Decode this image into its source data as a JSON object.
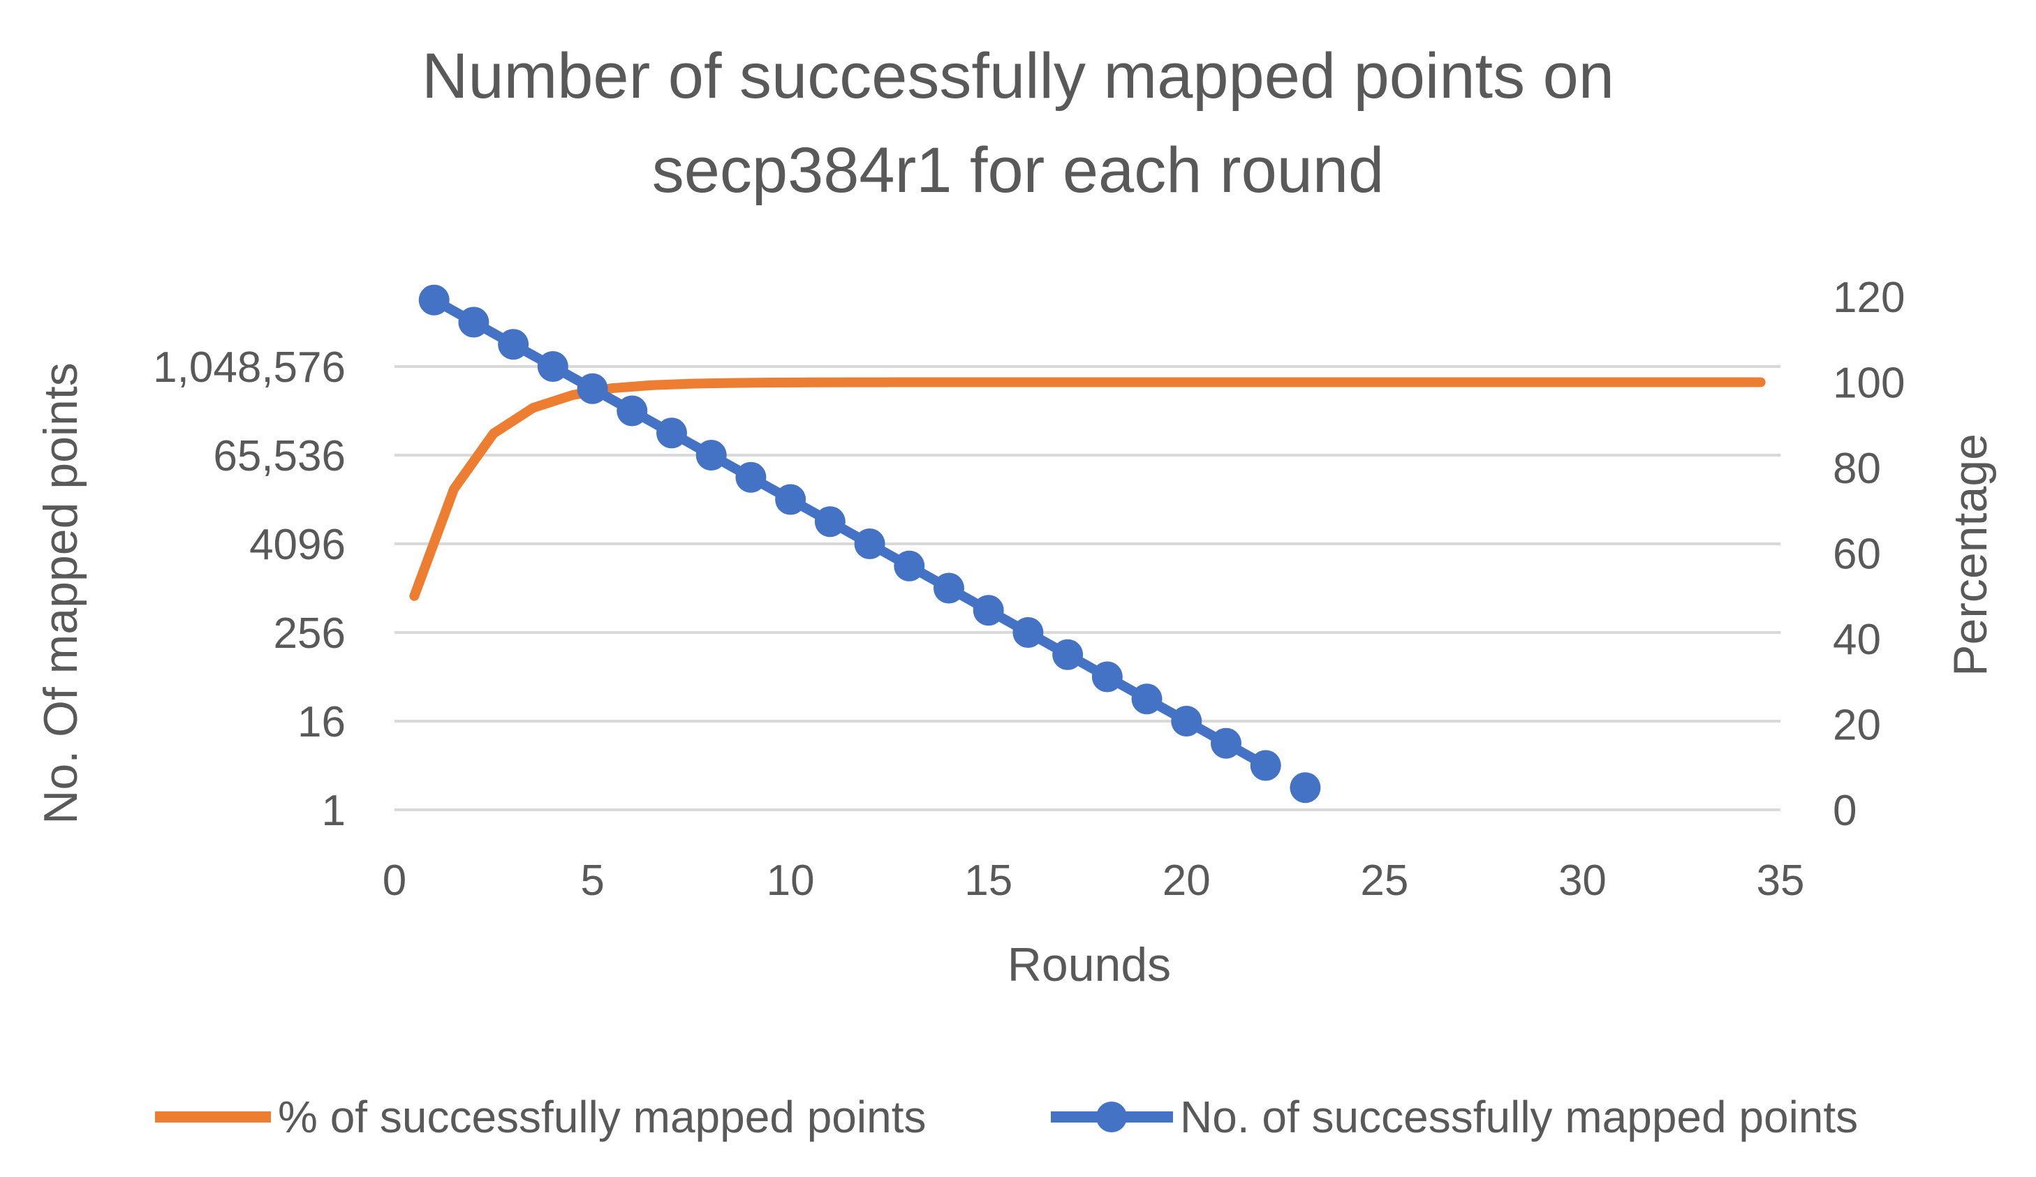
{
  "chart_data": {
    "type": "line",
    "title": [
      "Number of successfully mapped points on",
      "secp384r1 for each round"
    ],
    "xlabel": "Rounds",
    "ylabel_left": "No. Of mapped points",
    "ylabel_right": "Percentage",
    "xlim": [
      0,
      35
    ],
    "x_ticks": [
      "0",
      "5",
      "10",
      "15",
      "20",
      "25",
      "30",
      "35"
    ],
    "left_axis": {
      "scale": "log2",
      "ticks": [
        "1",
        "16",
        "256",
        "4096",
        "65,536",
        "1,048,576"
      ]
    },
    "right_axis": {
      "ylim": [
        0,
        120
      ],
      "ticks": [
        "0",
        "20",
        "40",
        "60",
        "80",
        "100",
        "120"
      ]
    },
    "grid": true,
    "legend_position": "bottom",
    "series": [
      {
        "name": "% of successfully mapped points",
        "axis": "right",
        "color": "#ed7d31",
        "marker": "none",
        "x": [
          0.5,
          1.5,
          2.5,
          3.5,
          4.5,
          5.5,
          6.5,
          7.5,
          8.5,
          9.5,
          10.5,
          11.5,
          12.5,
          13.5,
          14.5,
          34.5
        ],
        "y": [
          50,
          75,
          88,
          94,
          97,
          98.6,
          99.3,
          99.65,
          99.82,
          99.91,
          99.96,
          99.98,
          99.99,
          100,
          100,
          100
        ]
      },
      {
        "name": "No. of successfully mapped points",
        "axis": "left",
        "color": "#4472c4",
        "marker": "circle",
        "x": [
          1,
          2,
          3,
          4,
          5,
          6,
          7,
          8,
          9,
          10,
          11,
          12,
          13,
          14,
          15,
          16,
          17,
          18,
          19,
          20,
          21,
          22,
          23
        ],
        "y": [
          8388608,
          4194304,
          2097152,
          1048576,
          524288,
          262144,
          131072,
          65536,
          32768,
          16384,
          8192,
          4096,
          2048,
          1024,
          512,
          256,
          128,
          64,
          32,
          16,
          8,
          4,
          2
        ],
        "segments": [
          [
            1,
            22
          ],
          [
            23,
            23
          ]
        ]
      }
    ]
  }
}
